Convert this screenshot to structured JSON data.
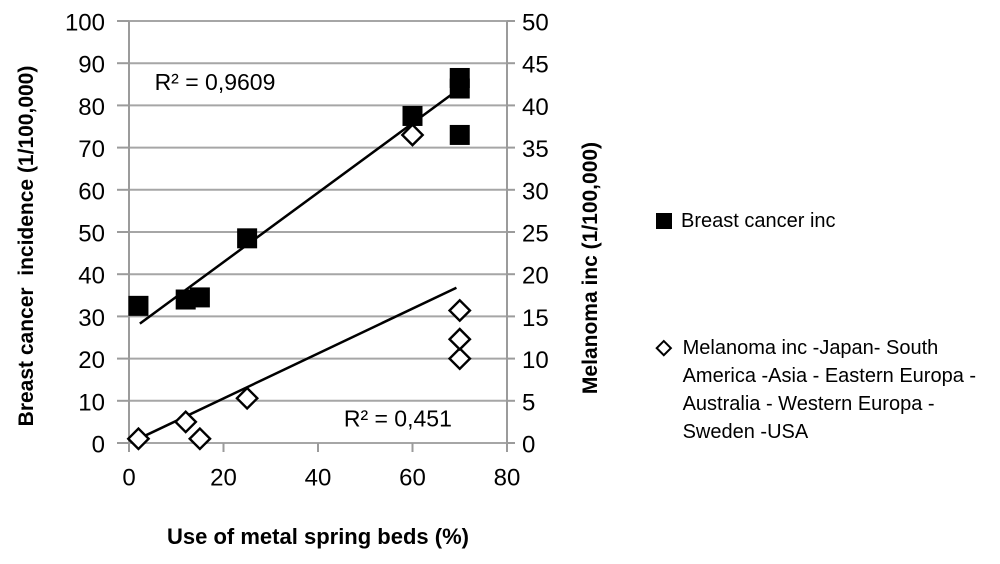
{
  "chart_data": {
    "type": "scatter",
    "x_axis": {
      "title": "Use of metal spring beds (%)",
      "min": 0,
      "max": 80,
      "ticks": [
        0,
        20,
        40,
        60,
        80
      ]
    },
    "y_axis_left": {
      "title": "Breast cancer  incidence (1/100,000)",
      "min": 0,
      "max": 100,
      "ticks": [
        0,
        10,
        20,
        30,
        40,
        50,
        60,
        70,
        80,
        90,
        100
      ]
    },
    "y_axis_right": {
      "title": "Melanoma inc (1/100,000)",
      "min": 0,
      "max": 50,
      "ticks": [
        0,
        5,
        10,
        15,
        20,
        25,
        30,
        35,
        40,
        45,
        50
      ]
    },
    "grid": true,
    "legend_position": "right",
    "series": [
      {
        "name": "Breast cancer inc",
        "axis": "left",
        "marker": "filled-square",
        "color": "#000000",
        "points": [
          [
            2,
            32.5
          ],
          [
            12,
            34
          ],
          [
            15,
            34.5
          ],
          [
            25,
            48.5
          ],
          [
            60,
            77.5
          ],
          [
            70,
            73
          ],
          [
            70,
            84
          ],
          [
            70,
            86.5
          ]
        ]
      },
      {
        "name": "Melanoma inc -Japan- South America -Asia - Eastern Europa - Australia - Western Europa - Sweden -USA",
        "axis": "right",
        "marker": "open-diamond",
        "color": "#000000",
        "points": [
          [
            2,
            0.5
          ],
          [
            12,
            2.5
          ],
          [
            15,
            0.5
          ],
          [
            25,
            5.3
          ],
          [
            60,
            36.5
          ],
          [
            70,
            10
          ],
          [
            70,
            12.3
          ],
          [
            70,
            15.7
          ]
        ]
      }
    ],
    "trendlines": [
      {
        "series": 0,
        "axis": "left",
        "from": [
          2.3,
          28.3
        ],
        "to": [
          70,
          84
        ],
        "r2_text": "R² = 0,9609",
        "r2_anchor": [
          18.2,
          85.6
        ],
        "r2_axis": "left"
      },
      {
        "series": 1,
        "axis": "right",
        "from": [
          0.9,
          0.2
        ],
        "to": [
          69.3,
          18.4
        ],
        "r2_text": "R² = 0,451",
        "r2_anchor": [
          56.9,
          2.9
        ],
        "r2_axis": "right"
      }
    ],
    "colors": {
      "marker": "#000000",
      "gridline": "#a6a6a6",
      "axis_line": "#9b9b9b",
      "trendline": "#000000",
      "text": "#000000",
      "background": "#ffffff"
    }
  }
}
